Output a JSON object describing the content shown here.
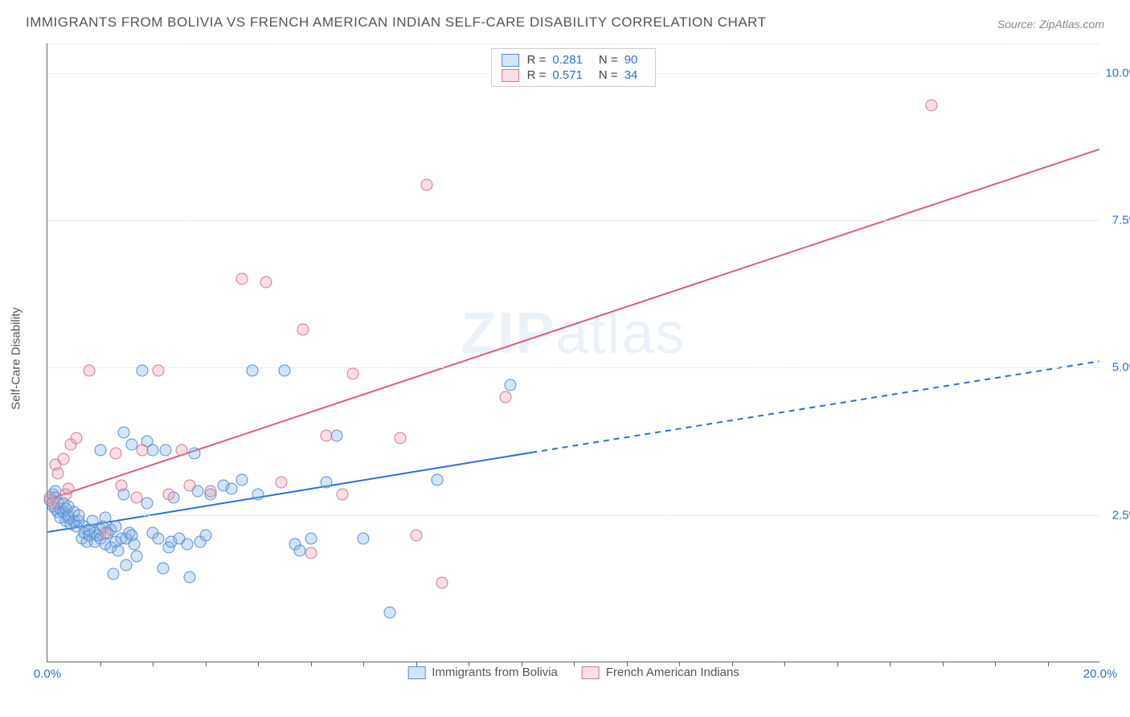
{
  "title": "IMMIGRANTS FROM BOLIVIA VS FRENCH AMERICAN INDIAN SELF-CARE DISABILITY CORRELATION CHART",
  "source": "Source: ZipAtlas.com",
  "ylabel": "Self-Care Disability",
  "watermark_a": "ZIP",
  "watermark_b": "atlas",
  "chart": {
    "type": "scatter",
    "background_color": "#ffffff",
    "grid_color": "#e3e3e3",
    "axis_color": "#666666",
    "xlim": [
      0,
      20
    ],
    "ylim": [
      0,
      10.5
    ],
    "yticks": [
      {
        "v": 2.5,
        "label": "2.5%"
      },
      {
        "v": 5.0,
        "label": "5.0%"
      },
      {
        "v": 7.5,
        "label": "7.5%"
      },
      {
        "v": 10.0,
        "label": "10.0%"
      }
    ],
    "ytick_color": "#2a6fd6",
    "ytick_fontsize": 15,
    "xticks_label": [
      {
        "v": 0,
        "label": "0.0%"
      },
      {
        "v": 20,
        "label": "20.0%"
      }
    ],
    "xticks_minor": [
      1,
      2,
      3,
      4,
      5,
      6,
      7,
      8,
      9,
      10,
      11,
      12,
      13,
      14,
      15,
      16,
      17,
      18,
      19
    ],
    "marker_size": 15,
    "marker_border_width": 1.5,
    "line_width": 2
  },
  "series": [
    {
      "name": "Immigrants from Bolivia",
      "color_fill": "rgba(130,177,230,0.35)",
      "color_stroke": "#5690d0",
      "line_color": "#2a6fd6",
      "R": "0.281",
      "N": "90",
      "trend": {
        "x0": 0,
        "y0": 2.2,
        "x1": 9.2,
        "y1": 3.55,
        "solid_until_x": 9.2
      },
      "trend_ext": {
        "x0": 9.2,
        "y0": 3.55,
        "x1": 20,
        "y1": 5.1,
        "dashed": true
      },
      "points": [
        [
          0.05,
          2.75
        ],
        [
          0.1,
          2.85
        ],
        [
          0.1,
          2.65
        ],
        [
          0.15,
          2.8
        ],
        [
          0.15,
          2.6
        ],
        [
          0.15,
          2.9
        ],
        [
          0.2,
          2.7
        ],
        [
          0.2,
          2.55
        ],
        [
          0.25,
          2.45
        ],
        [
          0.25,
          2.6
        ],
        [
          0.3,
          2.55
        ],
        [
          0.3,
          2.7
        ],
        [
          0.35,
          2.6
        ],
        [
          0.35,
          2.4
        ],
        [
          0.4,
          2.5
        ],
        [
          0.4,
          2.45
        ],
        [
          0.4,
          2.65
        ],
        [
          0.45,
          2.35
        ],
        [
          0.5,
          2.4
        ],
        [
          0.5,
          2.55
        ],
        [
          0.55,
          2.3
        ],
        [
          0.6,
          2.4
        ],
        [
          0.6,
          2.5
        ],
        [
          0.65,
          2.1
        ],
        [
          0.7,
          2.3
        ],
        [
          0.7,
          2.2
        ],
        [
          0.75,
          2.05
        ],
        [
          0.8,
          2.15
        ],
        [
          0.8,
          2.25
        ],
        [
          0.85,
          2.4
        ],
        [
          0.9,
          2.05
        ],
        [
          0.9,
          2.2
        ],
        [
          0.95,
          2.15
        ],
        [
          1.0,
          2.25
        ],
        [
          1.0,
          2.1
        ],
        [
          1.05,
          2.3
        ],
        [
          1.1,
          2.45
        ],
        [
          1.1,
          2.0
        ],
        [
          1.15,
          2.2
        ],
        [
          1.2,
          1.95
        ],
        [
          1.2,
          2.25
        ],
        [
          1.25,
          1.5
        ],
        [
          1.3,
          2.05
        ],
        [
          1.3,
          2.3
        ],
        [
          1.35,
          1.9
        ],
        [
          1.4,
          2.1
        ],
        [
          1.45,
          2.85
        ],
        [
          1.5,
          1.65
        ],
        [
          1.5,
          2.1
        ],
        [
          1.55,
          2.2
        ],
        [
          1.6,
          3.7
        ],
        [
          1.6,
          2.15
        ],
        [
          1.65,
          2.0
        ],
        [
          1.7,
          1.8
        ],
        [
          1.8,
          4.95
        ],
        [
          1.9,
          3.75
        ],
        [
          1.9,
          2.7
        ],
        [
          2.0,
          3.6
        ],
        [
          2.0,
          2.2
        ],
        [
          2.1,
          2.1
        ],
        [
          2.2,
          1.6
        ],
        [
          2.25,
          3.6
        ],
        [
          2.3,
          1.95
        ],
        [
          2.35,
          2.05
        ],
        [
          2.4,
          2.8
        ],
        [
          2.5,
          2.1
        ],
        [
          2.65,
          2.0
        ],
        [
          2.7,
          1.45
        ],
        [
          2.8,
          3.55
        ],
        [
          2.85,
          2.9
        ],
        [
          2.9,
          2.05
        ],
        [
          3.0,
          2.15
        ],
        [
          3.1,
          2.85
        ],
        [
          3.35,
          3.0
        ],
        [
          3.5,
          2.95
        ],
        [
          3.7,
          3.1
        ],
        [
          3.9,
          4.95
        ],
        [
          4.0,
          2.85
        ],
        [
          4.5,
          4.95
        ],
        [
          4.7,
          2.0
        ],
        [
          4.8,
          1.9
        ],
        [
          5.0,
          2.1
        ],
        [
          5.3,
          3.05
        ],
        [
          5.5,
          3.85
        ],
        [
          6.0,
          2.1
        ],
        [
          6.5,
          0.85
        ],
        [
          7.4,
          3.1
        ],
        [
          8.8,
          4.7
        ],
        [
          1.45,
          3.9
        ],
        [
          1.0,
          3.6
        ]
      ]
    },
    {
      "name": "French American Indians",
      "color_fill": "rgba(236,160,180,0.35)",
      "color_stroke": "#d47892",
      "line_color": "#e05a7e",
      "R": "0.571",
      "N": "34",
      "trend": {
        "x0": 0,
        "y0": 2.75,
        "x1": 20,
        "y1": 8.7,
        "solid_until_x": 20
      },
      "points": [
        [
          0.05,
          2.8
        ],
        [
          0.1,
          2.7
        ],
        [
          0.15,
          3.35
        ],
        [
          0.2,
          3.2
        ],
        [
          0.3,
          3.45
        ],
        [
          0.35,
          2.85
        ],
        [
          0.4,
          2.95
        ],
        [
          0.45,
          3.7
        ],
        [
          0.55,
          3.8
        ],
        [
          0.8,
          4.95
        ],
        [
          1.1,
          2.2
        ],
        [
          1.3,
          3.55
        ],
        [
          1.4,
          3.0
        ],
        [
          1.7,
          2.8
        ],
        [
          1.8,
          3.6
        ],
        [
          2.1,
          4.95
        ],
        [
          2.3,
          2.85
        ],
        [
          2.55,
          3.6
        ],
        [
          2.7,
          3.0
        ],
        [
          3.1,
          2.9
        ],
        [
          3.7,
          6.5
        ],
        [
          4.15,
          6.45
        ],
        [
          4.45,
          3.05
        ],
        [
          4.85,
          5.65
        ],
        [
          5.0,
          1.85
        ],
        [
          5.3,
          3.85
        ],
        [
          5.6,
          2.85
        ],
        [
          5.8,
          4.9
        ],
        [
          6.7,
          3.8
        ],
        [
          7.0,
          2.15
        ],
        [
          7.2,
          8.1
        ],
        [
          7.5,
          1.35
        ],
        [
          8.7,
          4.5
        ],
        [
          16.8,
          9.45
        ]
      ]
    }
  ],
  "legend_bottom": [
    {
      "label": "Immigrants from Bolivia",
      "series_idx": 0
    },
    {
      "label": "French American Indians",
      "series_idx": 1
    }
  ]
}
